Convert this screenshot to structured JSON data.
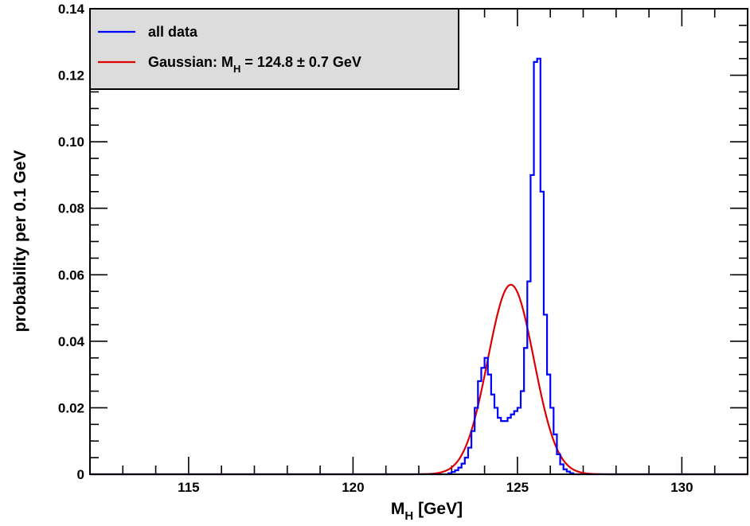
{
  "chart_data": {
    "type": "line",
    "ylabel": "probability per 0.1 GeV",
    "xlabel": {
      "main": "M",
      "sub": "H",
      "rest": " [GeV]"
    },
    "xlim": [
      112,
      132
    ],
    "ylim": [
      0,
      0.14
    ],
    "x_ticks": [
      115,
      120,
      125,
      130
    ],
    "x_tick_labels": [
      "115",
      "120",
      "125",
      "130"
    ],
    "y_ticks": [
      0,
      0.02,
      0.04,
      0.06,
      0.08,
      0.1,
      0.12,
      0.14
    ],
    "y_tick_labels": [
      "0",
      "0.02",
      "0.04",
      "0.06",
      "0.08",
      "0.10",
      "0.12",
      "0.14"
    ],
    "legend": {
      "placement": "top-left",
      "entries": [
        {
          "label": "all data",
          "color": "#0000ff"
        },
        {
          "label_parts": [
            "Gaussian: M",
            "H",
            " = 124.8 ± 0.7 GeV"
          ],
          "color": "#dd0000"
        }
      ]
    },
    "series": [
      {
        "name": "all data",
        "kind": "step",
        "color": "#0000ff",
        "bin_width": 0.1,
        "x_start": 122.9,
        "values": [
          0.0003,
          0.0007,
          0.0012,
          0.002,
          0.0032,
          0.005,
          0.008,
          0.013,
          0.02,
          0.028,
          0.032,
          0.035,
          0.03,
          0.024,
          0.02,
          0.017,
          0.016,
          0.016,
          0.017,
          0.018,
          0.019,
          0.02,
          0.025,
          0.038,
          0.058,
          0.09,
          0.124,
          0.125,
          0.085,
          0.048,
          0.03,
          0.02,
          0.012,
          0.006,
          0.003,
          0.0015,
          0.0008,
          0.0003
        ]
      },
      {
        "name": "Gaussian: M_H = 124.8 ± 0.7 GeV",
        "kind": "gaussian",
        "color": "#dd0000",
        "mean": 124.8,
        "sigma": 0.7,
        "peak": 0.057
      }
    ]
  }
}
